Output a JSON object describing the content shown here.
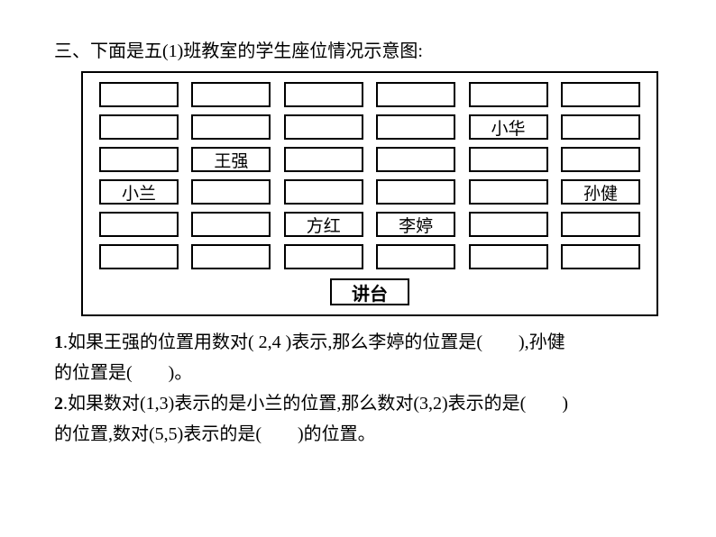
{
  "title": "三、下面是五(1)班教室的学生座位情况示意图:",
  "diagram": {
    "border_color": "#000000",
    "seat_border_color": "#000000",
    "seat_width": 88,
    "seat_height": 28,
    "rows": 6,
    "cols": 6,
    "seats": [
      [
        "",
        "",
        "",
        "",
        "",
        ""
      ],
      [
        "",
        "",
        "",
        "",
        "小华",
        ""
      ],
      [
        "",
        "王强",
        "",
        "",
        "",
        ""
      ],
      [
        "小兰",
        "",
        "",
        "",
        "",
        "孙健"
      ],
      [
        "",
        "",
        "方红",
        "李婷",
        "",
        ""
      ],
      [
        "",
        "",
        "",
        "",
        "",
        ""
      ]
    ],
    "podium_label": "讲台"
  },
  "questions": {
    "q1": {
      "num": "1",
      "part1": ".如果王强的位置用数对( 2,4 )表示,那么李婷的位置是(",
      "part2": "),孙健",
      "part3": "的位置是(",
      "part4": ")。"
    },
    "q2": {
      "num": "2",
      "part1": ".如果数对(1,3)表示的是小兰的位置,那么数对(3,2)表示的是(",
      "part2": ")",
      "part3": "的位置,数对(5,5)表示的是(",
      "part4": ")的位置。"
    }
  }
}
